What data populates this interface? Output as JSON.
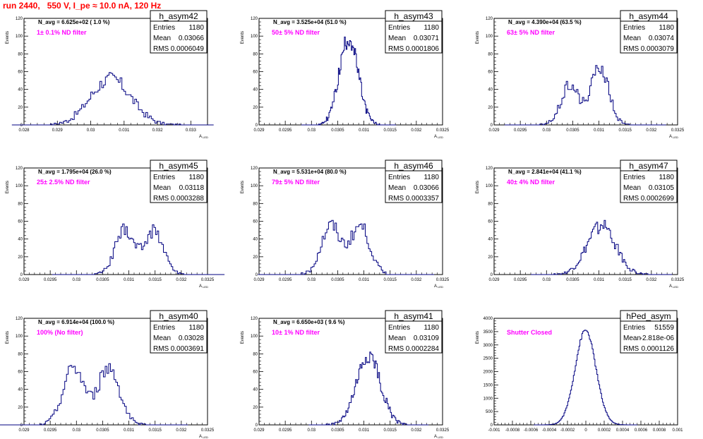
{
  "canvas_title": "run 2440,   550 V, I_pe ≈ 10.0 nA, 120 Hz",
  "chart_data": [
    {
      "type": "bar",
      "name": "h_asym42",
      "navg": "N_avg = 6.625e+02 ( 1.0 %)",
      "filter": "1± 0.1% ND filter",
      "stats": {
        "labels": [
          "Entries",
          "Mean",
          "RMS"
        ],
        "values": [
          "1180",
          "0.03066",
          "0.0006049"
        ]
      },
      "xlim": [
        0.028,
        0.0335
      ],
      "ylim": [
        0,
        120
      ],
      "xticks": [
        "0.028",
        "0.029",
        "0.03",
        "0.031",
        "0.032",
        "0.033"
      ],
      "xtick_vals": [
        0.028,
        0.029,
        0.03,
        0.031,
        0.032,
        0.033
      ],
      "yticks": [
        0,
        20,
        40,
        60,
        80,
        100,
        120
      ],
      "xlabel": "A_LED",
      "ylabel": "Events",
      "hist": {
        "mean": 0.03066,
        "rms": 0.0006049,
        "peak": 52,
        "modes": [
          [
            0.0306,
            1.0
          ]
        ]
      }
    },
    {
      "type": "bar",
      "name": "h_asym43",
      "navg": "N_avg = 3.525e+04 (51.0 %)",
      "filter": "50± 5% ND filter",
      "stats": {
        "labels": [
          "Entries",
          "Mean",
          "RMS"
        ],
        "values": [
          "1180",
          "0.03071",
          "0.0001806"
        ]
      },
      "xlim": [
        0.029,
        0.0325
      ],
      "ylim": [
        0,
        120
      ],
      "xticks": [
        "0.029",
        "0.0295",
        "0.03",
        "0.0305",
        "0.031",
        "0.0315",
        "0.032",
        "0.0325"
      ],
      "xtick_vals": [
        0.029,
        0.0295,
        0.03,
        0.0305,
        0.031,
        0.0315,
        0.032,
        0.0325
      ],
      "yticks": [
        0,
        20,
        40,
        60,
        80,
        100,
        120
      ],
      "xlabel": "A_LED",
      "ylabel": "Events",
      "hist": {
        "mean": 0.03071,
        "rms": 0.0001806,
        "peak": 97,
        "modes": [
          [
            0.03071,
            1.0
          ]
        ]
      }
    },
    {
      "type": "bar",
      "name": "h_asym44",
      "navg": "N_avg = 4.390e+04 (63.5 %)",
      "filter": "63± 5% ND filter",
      "stats": {
        "labels": [
          "Entries",
          "Mean",
          "RMS"
        ],
        "values": [
          "1180",
          "0.03074",
          "0.0003079"
        ]
      },
      "xlim": [
        0.029,
        0.0325
      ],
      "ylim": [
        0,
        120
      ],
      "xticks": [
        "0.029",
        "0.0295",
        "0.03",
        "0.0305",
        "0.031",
        "0.0315",
        "0.032",
        "0.0325"
      ],
      "xtick_vals": [
        0.029,
        0.0295,
        0.03,
        0.0305,
        0.031,
        0.0315,
        0.032,
        0.0325
      ],
      "yticks": [
        0,
        20,
        40,
        60,
        80,
        100,
        120
      ],
      "xlabel": "A_LED",
      "ylabel": "Events",
      "hist": {
        "mean": 0.03074,
        "rms": 0.0003079,
        "peak": 66,
        "modes": [
          [
            0.03045,
            0.7
          ],
          [
            0.03102,
            1.0
          ]
        ]
      }
    },
    {
      "type": "bar",
      "name": "h_asym45",
      "navg": "N_avg = 1.795e+04 (26.0 %)",
      "filter": "25± 2.5% ND filter",
      "stats": {
        "labels": [
          "Entries",
          "Mean",
          "RMS"
        ],
        "values": [
          "1180",
          "0.03118",
          "0.0003288"
        ]
      },
      "xlim": [
        0.029,
        0.0325
      ],
      "ylim": [
        0,
        120
      ],
      "xticks": [
        "0.029",
        "0.0295",
        "0.03",
        "0.0305",
        "0.031",
        "0.0315",
        "0.032",
        "0.0325"
      ],
      "xtick_vals": [
        0.029,
        0.0295,
        0.03,
        0.0305,
        0.031,
        0.0315,
        0.032,
        0.0325
      ],
      "yticks": [
        0,
        20,
        40,
        60,
        80,
        100,
        120
      ],
      "xlabel": "A_LED",
      "ylabel": "Events",
      "hist": {
        "mean": 0.03118,
        "rms": 0.0003288,
        "peak": 50,
        "modes": [
          [
            0.03092,
            1.0
          ],
          [
            0.03148,
            1.0
          ]
        ]
      }
    },
    {
      "type": "bar",
      "name": "h_asym46",
      "navg": "N_avg = 5.531e+04 (80.0 %)",
      "filter": "79± 5% ND filter",
      "stats": {
        "labels": [
          "Entries",
          "Mean",
          "RMS"
        ],
        "values": [
          "1180",
          "0.03066",
          "0.0003357"
        ]
      },
      "xlim": [
        0.029,
        0.0325
      ],
      "ylim": [
        0,
        120
      ],
      "xticks": [
        "0.029",
        "0.0295",
        "0.03",
        "0.0305",
        "0.031",
        "0.0315",
        "0.032",
        "0.0325"
      ],
      "xtick_vals": [
        0.029,
        0.0295,
        0.03,
        0.0305,
        0.031,
        0.0315,
        0.032,
        0.0325
      ],
      "yticks": [
        0,
        20,
        40,
        60,
        80,
        100,
        120
      ],
      "xlabel": "A_LED",
      "ylabel": "Events",
      "hist": {
        "mean": 0.03066,
        "rms": 0.0003357,
        "peak": 55,
        "modes": [
          [
            0.03037,
            1.0
          ],
          [
            0.03093,
            1.0
          ]
        ]
      }
    },
    {
      "type": "bar",
      "name": "h_asym47",
      "navg": "N_avg = 2.841e+04 (41.1 %)",
      "filter": "40± 4% ND filter",
      "stats": {
        "labels": [
          "Entries",
          "Mean",
          "RMS"
        ],
        "values": [
          "1180",
          "0.03105",
          "0.0002699"
        ]
      },
      "xlim": [
        0.029,
        0.0325
      ],
      "ylim": [
        0,
        120
      ],
      "xticks": [
        "0.029",
        "0.0295",
        "0.03",
        "0.0305",
        "0.031",
        "0.0315",
        "0.032",
        "0.0325"
      ],
      "xtick_vals": [
        0.029,
        0.0295,
        0.03,
        0.0305,
        0.031,
        0.0315,
        0.032,
        0.0325
      ],
      "yticks": [
        0,
        20,
        40,
        60,
        80,
        100,
        120
      ],
      "xlabel": "A_LED",
      "ylabel": "Events",
      "hist": {
        "mean": 0.03105,
        "rms": 0.0002699,
        "peak": 55,
        "modes": [
          [
            0.03105,
            1.0
          ]
        ]
      }
    },
    {
      "type": "bar",
      "name": "h_asym40",
      "navg": "N_avg = 6.914e+04 (100.0 %)",
      "filter": "100% (No filter)",
      "stats": {
        "labels": [
          "Entries",
          "Mean",
          "RMS"
        ],
        "values": [
          "1180",
          "0.03028",
          "0.0003691"
        ]
      },
      "xlim": [
        0.029,
        0.0325
      ],
      "ylim": [
        0,
        120
      ],
      "xticks": [
        "0.029",
        "0.0295",
        "0.03",
        "0.0305",
        "0.031",
        "0.0315",
        "0.032",
        "0.0325"
      ],
      "xtick_vals": [
        0.029,
        0.0295,
        0.03,
        0.0305,
        0.031,
        0.0315,
        0.032,
        0.0325
      ],
      "yticks": [
        0,
        20,
        40,
        60,
        80,
        100,
        120
      ],
      "xlabel": "A_LED",
      "ylabel": "Events",
      "hist": {
        "mean": 0.03028,
        "rms": 0.0003691,
        "peak": 65,
        "modes": [
          [
            0.02995,
            1.0
          ],
          [
            0.03062,
            1.0
          ]
        ]
      }
    },
    {
      "type": "bar",
      "name": "h_asym41",
      "navg": "N_avg = 6.650e+03 ( 9.6 %)",
      "filter": "10± 1% ND filter",
      "stats": {
        "labels": [
          "Entries",
          "Mean",
          "RMS"
        ],
        "values": [
          "1180",
          "0.03109",
          "0.0002284"
        ]
      },
      "xlim": [
        0.029,
        0.0325
      ],
      "ylim": [
        0,
        120
      ],
      "xticks": [
        "0.029",
        "0.0295",
        "0.03",
        "0.0305",
        "0.031",
        "0.0315",
        "0.032",
        "0.0325"
      ],
      "xtick_vals": [
        0.029,
        0.0295,
        0.03,
        0.0305,
        0.031,
        0.0315,
        0.032,
        0.0325
      ],
      "yticks": [
        0,
        20,
        40,
        60,
        80,
        100,
        120
      ],
      "xlabel": "A_LED",
      "ylabel": "Events",
      "hist": {
        "mean": 0.03109,
        "rms": 0.0002284,
        "peak": 77,
        "modes": [
          [
            0.03109,
            1.0
          ]
        ]
      }
    },
    {
      "type": "bar",
      "name": "hPed_asym",
      "navg": "",
      "filter": "Shutter Closed",
      "stats": {
        "labels": [
          "Entries",
          "Mean",
          "RMS"
        ],
        "values": [
          "51559",
          "-2.818e-06",
          "0.0001126"
        ]
      },
      "xlim": [
        -0.001,
        0.001
      ],
      "ylim": [
        0,
        4000
      ],
      "xticks": [
        "-0.001",
        "-0.0008",
        "-0.0006",
        "-0.0004",
        "-0.0002",
        "0",
        "0.0002",
        "0.0004",
        "0.0006",
        "0.0008",
        "0.001"
      ],
      "xtick_vals": [
        -0.001,
        -0.0008,
        -0.0006,
        -0.0004,
        -0.0002,
        0,
        0.0002,
        0.0004,
        0.0006,
        0.0008,
        0.001
      ],
      "yticks": [
        0,
        500,
        1000,
        1500,
        2000,
        2500,
        3000,
        3500,
        4000
      ],
      "xlabel": "",
      "ylabel": "Events",
      "hist": {
        "mean": -2.818e-06,
        "rms": 0.0001126,
        "peak": 3550,
        "modes": [
          [
            -2.818e-06,
            1.0
          ]
        ]
      }
    }
  ]
}
